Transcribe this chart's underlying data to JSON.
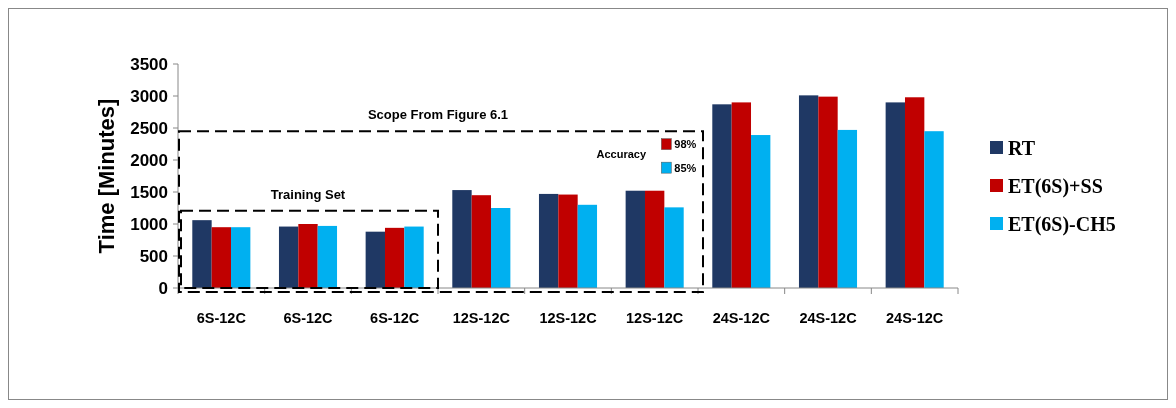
{
  "chart_data": {
    "type": "bar",
    "categories": [
      "6S-12C",
      "6S-12C",
      "6S-12C",
      "12S-12C",
      "12S-12C",
      "12S-12C",
      "24S-12C",
      "24S-12C",
      "24S-12C"
    ],
    "ylabel": "Time [Minutes]",
    "series": [
      {
        "name": "RT",
        "color": "#1f3864",
        "values": [
          1060,
          960,
          880,
          1530,
          1470,
          1520,
          2870,
          3010,
          2900
        ]
      },
      {
        "name": "ET(6S)+SS",
        "color": "#c00000",
        "values": [
          950,
          1000,
          940,
          1450,
          1460,
          1520,
          2900,
          2990,
          2980
        ]
      },
      {
        "name": "ET(6S)-CH5",
        "color": "#00b0f0",
        "values": [
          950,
          970,
          960,
          1250,
          1300,
          1260,
          2390,
          2470,
          2450
        ]
      }
    ],
    "ylim": [
      0,
      3500
    ],
    "yticks": [
      0,
      500,
      1000,
      1500,
      2000,
      2500,
      3000,
      3500
    ],
    "annotations": [
      "Scope From Figure 6.1",
      "Training Set",
      "Accuracy",
      "98%",
      "85%"
    ],
    "legend": "right",
    "grid": false
  }
}
